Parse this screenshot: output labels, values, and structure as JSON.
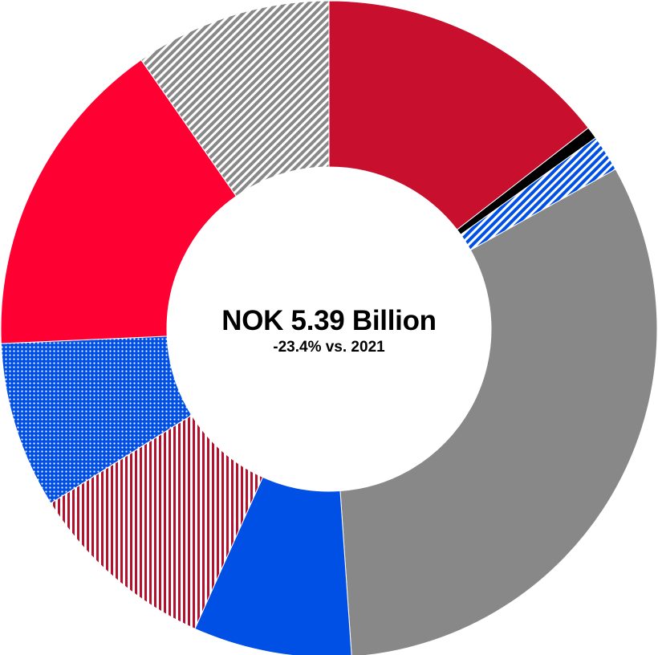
{
  "chart_data": {
    "type": "pie",
    "style": "donut",
    "title": "",
    "center": {
      "title": "NOK 5.39 Billion",
      "subtitle": "-23.4% vs. 2021"
    },
    "start_angle_deg": 0,
    "direction": "clockwise",
    "slices": [
      {
        "value": 14.5,
        "color": "#c8102e",
        "fill": "solid"
      },
      {
        "value": 0.6,
        "color": "#000000",
        "fill": "solid"
      },
      {
        "value": 1.8,
        "color": "#0050e6",
        "fill": "diagonal-stripes"
      },
      {
        "value": 32.0,
        "color": "#888888",
        "fill": "solid"
      },
      {
        "value": 7.8,
        "color": "#0050e6",
        "fill": "solid"
      },
      {
        "value": 9.4,
        "color": "#b5112e",
        "fill": "vertical-stripes"
      },
      {
        "value": 8.2,
        "color": "#0050e6",
        "fill": "dots"
      },
      {
        "value": 16.0,
        "color": "#ff0033",
        "fill": "solid"
      },
      {
        "value": 9.7,
        "color": "#888888",
        "fill": "diagonal-stripes"
      }
    ]
  }
}
